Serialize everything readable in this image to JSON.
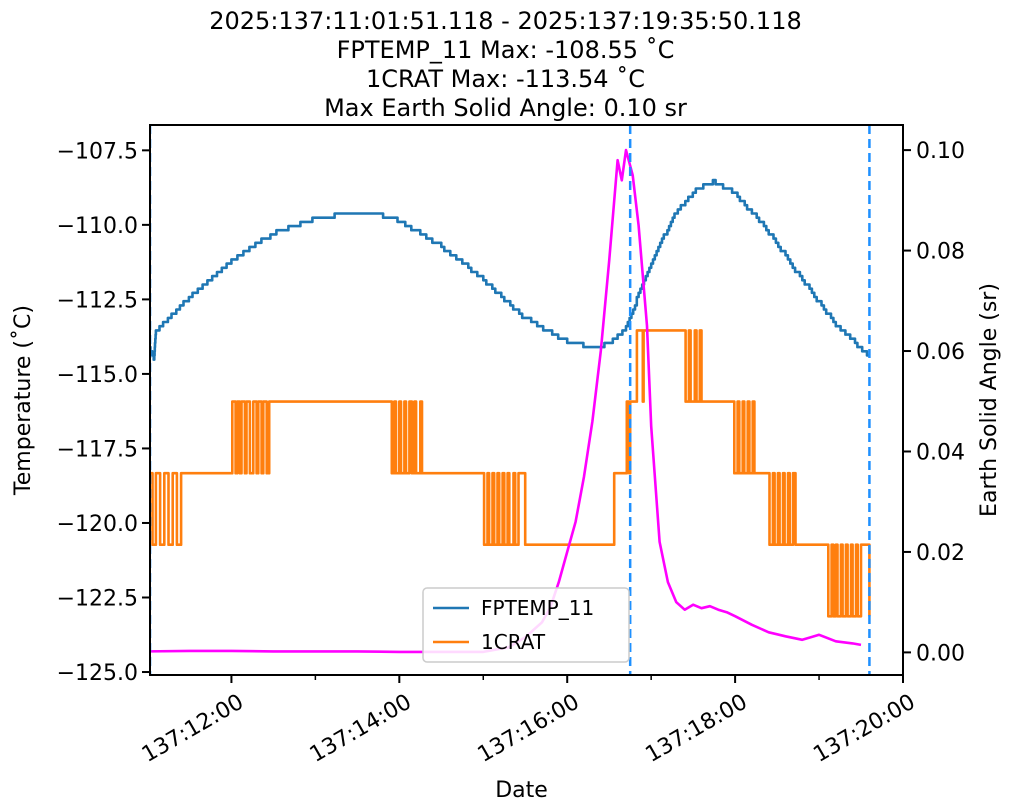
{
  "titles": [
    "2025:137:11:01:51.118 - 2025:137:19:35:50.118",
    "FPTEMP_11 Max: -108.55 ˚C",
    "1CRAT Max: -113.54 ˚C",
    "Max Earth Solid Angle: 0.10 sr"
  ],
  "chart_data": {
    "type": "line",
    "xlabel": "Date",
    "ylabel": "Temperature (˚C)",
    "y2label": "Earth Solid Angle (sr)",
    "x_unit": "hours of day 137",
    "xlim": [
      11.03,
      20.0
    ],
    "ylim": [
      -125.1,
      -106.65
    ],
    "y2lim": [
      -0.0045,
      0.105
    ],
    "x_ticks": [
      {
        "value": 12,
        "label": "137:12:00"
      },
      {
        "value": 14,
        "label": "137:14:00"
      },
      {
        "value": 16,
        "label": "137:16:00"
      },
      {
        "value": 18,
        "label": "137:18:00"
      },
      {
        "value": 20,
        "label": "137:20:00"
      }
    ],
    "x_minor_ticks": [
      11,
      13,
      15,
      17,
      19
    ],
    "y_ticks": [
      {
        "value": -107.5,
        "label": "−107.5"
      },
      {
        "value": -110.0,
        "label": "−110.0"
      },
      {
        "value": -112.5,
        "label": "−112.5"
      },
      {
        "value": -115.0,
        "label": "−115.0"
      },
      {
        "value": -117.5,
        "label": "−117.5"
      },
      {
        "value": -120.0,
        "label": "−120.0"
      },
      {
        "value": -122.5,
        "label": "−122.5"
      },
      {
        "value": -125.0,
        "label": "−125.0"
      }
    ],
    "y2_ticks": [
      {
        "value": 0.1,
        "label": "0.10"
      },
      {
        "value": 0.08,
        "label": "0.08"
      },
      {
        "value": 0.06,
        "label": "0.06"
      },
      {
        "value": 0.04,
        "label": "0.04"
      },
      {
        "value": 0.02,
        "label": "0.02"
      },
      {
        "value": 0.0,
        "label": "0.00"
      }
    ],
    "vlines": [
      11.03,
      16.75,
      19.6
    ],
    "vline_color": "#1e90ff",
    "legend_position": "lower-center",
    "series": [
      {
        "name": "FPTEMP_11",
        "axis": "left",
        "color": "#1f77b4",
        "step": 0.14,
        "x": [
          11.0,
          11.08,
          11.1,
          11.3,
          11.6,
          12.0,
          12.5,
          13.0,
          13.4,
          13.7,
          14.0,
          14.5,
          15.0,
          15.5,
          16.0,
          16.3,
          16.5,
          16.7,
          17.0,
          17.3,
          17.55,
          17.75,
          18.0,
          18.4,
          18.8,
          19.2,
          19.6
        ],
        "y": [
          -113.9,
          -114.5,
          -113.6,
          -113.0,
          -112.2,
          -111.2,
          -110.3,
          -109.8,
          -109.6,
          -109.6,
          -109.85,
          -110.7,
          -111.8,
          -113.1,
          -113.9,
          -114.1,
          -114.0,
          -113.5,
          -111.3,
          -109.6,
          -108.8,
          -108.55,
          -108.9,
          -110.2,
          -111.8,
          -113.3,
          -114.4
        ]
      },
      {
        "name": "1CRAT",
        "axis": "left",
        "color": "#ff7f0e",
        "levels": [
          -113.54,
          -115.93,
          -118.33,
          -120.73
        ],
        "x": [
          11.03,
          11.06,
          11.1,
          11.15,
          11.2,
          11.25,
          11.3,
          11.35,
          11.4,
          12.0,
          12.01,
          12.05,
          12.07,
          12.1,
          12.12,
          12.16,
          12.18,
          12.22,
          12.26,
          12.3,
          12.32,
          12.36,
          12.38,
          12.42,
          12.45,
          13.9,
          13.91,
          13.94,
          13.96,
          14.0,
          14.02,
          14.06,
          14.08,
          14.12,
          14.15,
          14.18,
          14.2,
          14.25,
          14.27,
          14.32,
          15.0,
          15.01,
          15.05,
          15.07,
          15.11,
          15.13,
          15.17,
          15.19,
          15.23,
          15.25,
          15.29,
          15.31,
          15.36,
          15.38,
          15.42,
          15.5,
          16.55,
          16.56,
          16.7,
          16.71,
          16.74,
          16.75,
          16.82,
          16.83,
          16.9,
          16.91,
          17.4,
          17.41,
          17.45,
          17.47,
          17.52,
          17.54,
          17.58,
          17.6,
          17.65,
          17.75,
          17.76,
          17.98,
          17.99,
          18.03,
          18.05,
          18.09,
          18.11,
          18.15,
          18.17,
          18.21,
          18.23,
          18.27,
          18.4,
          18.41,
          18.45,
          18.47,
          18.51,
          18.53,
          18.57,
          18.59,
          18.63,
          18.65,
          18.69,
          18.72,
          19.1,
          19.11,
          19.15,
          19.17,
          19.2,
          19.22,
          19.26,
          19.28,
          19.32,
          19.34,
          19.38,
          19.4,
          19.44,
          19.46,
          19.5,
          19.6
        ],
        "y": [
          -118.33,
          -120.73,
          -118.33,
          -120.73,
          -118.33,
          -120.73,
          -118.33,
          -120.73,
          -118.33,
          -118.33,
          -115.93,
          -118.33,
          -115.93,
          -118.33,
          -115.93,
          -118.33,
          -115.93,
          -118.33,
          -115.93,
          -118.33,
          -115.93,
          -118.33,
          -115.93,
          -118.33,
          -115.93,
          -115.93,
          -118.33,
          -115.93,
          -118.33,
          -115.93,
          -118.33,
          -115.93,
          -118.33,
          -115.93,
          -118.33,
          -115.93,
          -118.33,
          -115.93,
          -118.33,
          -118.33,
          -118.33,
          -120.73,
          -118.33,
          -120.73,
          -118.33,
          -120.73,
          -118.33,
          -120.73,
          -118.33,
          -120.73,
          -118.33,
          -120.73,
          -118.33,
          -120.73,
          -118.33,
          -120.73,
          -120.73,
          -118.33,
          -118.33,
          -115.93,
          -118.33,
          -115.93,
          -115.93,
          -113.54,
          -115.93,
          -113.54,
          -113.54,
          -115.93,
          -113.54,
          -115.93,
          -113.54,
          -115.93,
          -113.54,
          -115.93,
          -115.93,
          -115.93,
          -115.93,
          -115.93,
          -118.33,
          -115.93,
          -118.33,
          -115.93,
          -118.33,
          -115.93,
          -118.33,
          -115.93,
          -118.33,
          -118.33,
          -118.33,
          -120.73,
          -118.33,
          -120.73,
          -118.33,
          -120.73,
          -118.33,
          -120.73,
          -118.33,
          -120.73,
          -118.33,
          -120.73,
          -120.73,
          -123.13,
          -120.73,
          -123.13,
          -120.73,
          -123.13,
          -120.73,
          -123.13,
          -120.73,
          -123.13,
          -120.73,
          -123.13,
          -120.73,
          -123.13,
          -120.73,
          -123.13
        ]
      },
      {
        "name": "",
        "axis": "right",
        "color": "#ff00ff",
        "x": [
          11.0,
          11.5,
          12.0,
          12.5,
          13.0,
          13.5,
          14.0,
          14.5,
          15.0,
          15.3,
          15.5,
          15.7,
          15.8,
          15.9,
          16.0,
          16.1,
          16.2,
          16.3,
          16.4,
          16.5,
          16.6,
          16.65,
          16.7,
          16.78,
          16.85,
          16.95,
          17.0,
          17.1,
          17.2,
          17.3,
          17.4,
          17.5,
          17.6,
          17.7,
          17.8,
          17.9,
          18.0,
          18.2,
          18.4,
          18.6,
          18.8,
          19.0,
          19.2,
          19.4,
          19.5
        ],
        "y": [
          0.0002,
          0.0003,
          0.0003,
          0.0002,
          0.0002,
          0.0002,
          0.0001,
          0.0001,
          0.0001,
          0.001,
          0.003,
          0.006,
          0.009,
          0.014,
          0.02,
          0.026,
          0.035,
          0.046,
          0.06,
          0.078,
          0.098,
          0.094,
          0.1,
          0.095,
          0.085,
          0.065,
          0.045,
          0.022,
          0.014,
          0.01,
          0.0085,
          0.0095,
          0.0088,
          0.0092,
          0.0085,
          0.008,
          0.0072,
          0.0055,
          0.004,
          0.0032,
          0.0025,
          0.0035,
          0.0022,
          0.0018,
          0.0015
        ]
      }
    ]
  }
}
